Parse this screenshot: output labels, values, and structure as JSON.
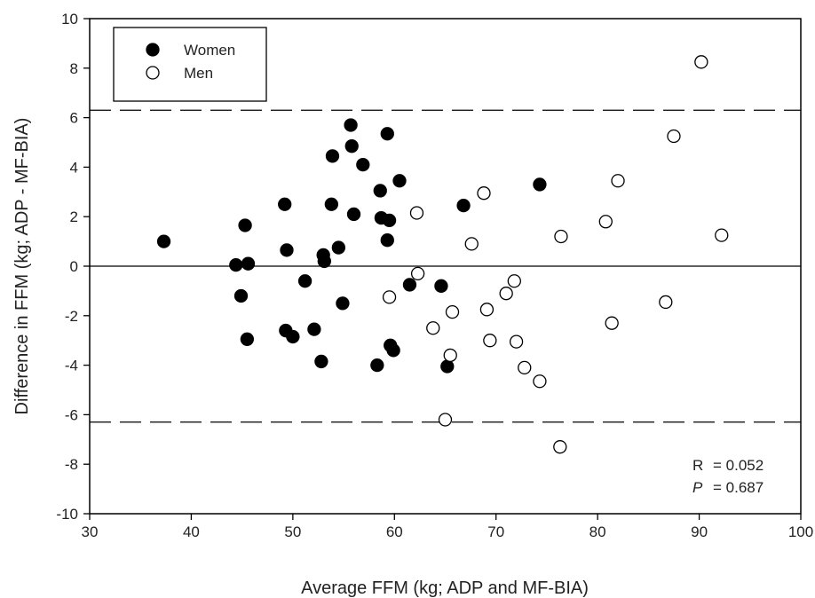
{
  "chart_data": {
    "type": "scatter",
    "xlabel": "Average FFM (kg; ADP and MF-BIA)",
    "ylabel": "Difference in FFM (kg; ADP - MF-BIA)",
    "xlim": [
      30,
      100
    ],
    "ylim": [
      -10,
      10
    ],
    "x_ticks": [
      30,
      40,
      50,
      60,
      70,
      80,
      90,
      100
    ],
    "y_ticks": [
      -10,
      -8,
      -6,
      -4,
      -2,
      0,
      2,
      4,
      6,
      8,
      10
    ],
    "grid": false,
    "legend_position": "top-left",
    "reference_lines": {
      "zero": 0,
      "upper_limit": 6.3,
      "lower_limit": -6.3
    },
    "annotations": {
      "r_label": "R",
      "r_value": "= 0.052",
      "p_label": "P",
      "p_value": "= 0.687"
    },
    "series": [
      {
        "name": "Women",
        "marker": "filled-circle",
        "points": [
          [
            37.3,
            1.0
          ],
          [
            44.4,
            0.05
          ],
          [
            44.9,
            -1.2
          ],
          [
            45.3,
            1.65
          ],
          [
            45.5,
            -2.95
          ],
          [
            45.6,
            0.1
          ],
          [
            49.2,
            2.5
          ],
          [
            49.3,
            -2.6
          ],
          [
            49.4,
            0.65
          ],
          [
            50.0,
            -2.85
          ],
          [
            51.2,
            -0.6
          ],
          [
            52.1,
            -2.55
          ],
          [
            52.8,
            -3.85
          ],
          [
            53.0,
            0.45
          ],
          [
            53.1,
            0.2
          ],
          [
            53.8,
            2.5
          ],
          [
            53.9,
            4.45
          ],
          [
            54.5,
            0.75
          ],
          [
            54.9,
            -1.5
          ],
          [
            55.7,
            5.7
          ],
          [
            55.8,
            4.85
          ],
          [
            56.0,
            2.1
          ],
          [
            56.9,
            4.1
          ],
          [
            58.3,
            -4.0
          ],
          [
            58.6,
            3.05
          ],
          [
            58.7,
            1.95
          ],
          [
            59.3,
            5.35
          ],
          [
            59.3,
            1.05
          ],
          [
            59.5,
            1.85
          ],
          [
            59.6,
            -3.2
          ],
          [
            59.9,
            -3.4
          ],
          [
            60.5,
            3.45
          ],
          [
            61.5,
            -0.75
          ],
          [
            64.6,
            -0.8
          ],
          [
            65.2,
            -4.05
          ],
          [
            66.8,
            2.45
          ],
          [
            74.3,
            3.3
          ]
        ]
      },
      {
        "name": "Men",
        "marker": "open-circle",
        "points": [
          [
            59.5,
            -1.25
          ],
          [
            62.2,
            2.15
          ],
          [
            62.3,
            -0.3
          ],
          [
            63.8,
            -2.5
          ],
          [
            65.0,
            -6.2
          ],
          [
            65.5,
            -3.6
          ],
          [
            65.7,
            -1.85
          ],
          [
            67.6,
            0.9
          ],
          [
            68.8,
            2.95
          ],
          [
            69.1,
            -1.75
          ],
          [
            69.4,
            -3.0
          ],
          [
            71.0,
            -1.1
          ],
          [
            71.8,
            -0.6
          ],
          [
            72.0,
            -3.05
          ],
          [
            72.8,
            -4.1
          ],
          [
            74.3,
            -4.65
          ],
          [
            76.3,
            -7.3
          ],
          [
            76.4,
            1.2
          ],
          [
            80.8,
            1.8
          ],
          [
            81.4,
            -2.3
          ],
          [
            82.0,
            3.45
          ],
          [
            86.7,
            -1.45
          ],
          [
            87.5,
            5.25
          ],
          [
            90.2,
            8.25
          ],
          [
            92.2,
            1.25
          ]
        ]
      }
    ]
  }
}
